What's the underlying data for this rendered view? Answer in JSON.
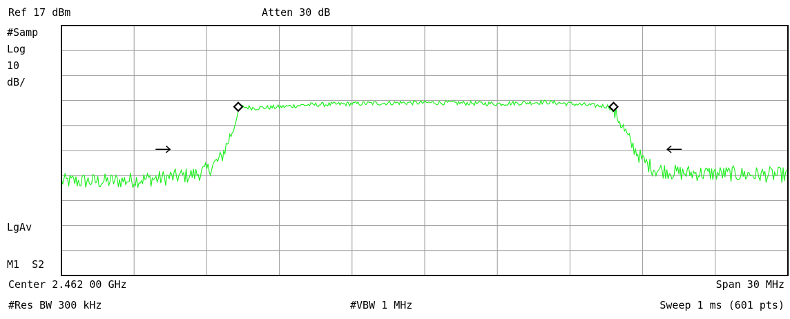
{
  "header": {
    "ref_level": "Ref 17 dBm",
    "attenuation": "Atten 30 dB"
  },
  "left_panel": {
    "detector": "#Samp",
    "scale_type": "Log",
    "scale_value": "10",
    "scale_unit": "dB/",
    "averaging": "LgAv",
    "marker_mode": "M1  S2"
  },
  "footer": {
    "center": "Center 2.462 00 GHz",
    "span": "Span 30 MHz",
    "rbw": "#Res BW 300 kHz",
    "vbw": "#VBW 1 MHz",
    "sweep": "Sweep 1 ms (601 pts)"
  },
  "colors": {
    "trace": "#22ee22",
    "grid": "#9a9a9a",
    "frame": "#000000",
    "marker": "#000000"
  },
  "chart_data": {
    "type": "line",
    "x_center_GHz": 2.462,
    "x_span_MHz": 30,
    "x_range_MHz": [
      -15,
      15
    ],
    "y_range_dBm": [
      -83,
      17
    ],
    "y_scale": "log",
    "y_per_div_dB": 10,
    "grid": true,
    "x_divisions": 10,
    "y_divisions": 10,
    "points": 601,
    "series": [
      {
        "shape": [
          [
            -15.0,
            -45.3
          ],
          [
            -13.0,
            -45.3
          ],
          [
            -11.0,
            -44.2
          ],
          [
            -9.5,
            -42.6
          ],
          [
            -9.0,
            -41.0
          ],
          [
            -8.4,
            -36.0
          ],
          [
            -8.0,
            -26.5
          ],
          [
            -7.6,
            -15.5
          ],
          [
            -7.0,
            -16.0
          ],
          [
            -6.0,
            -15.6
          ],
          [
            -5.0,
            -14.8
          ],
          [
            -3.0,
            -14.3
          ],
          [
            -1.0,
            -13.9
          ],
          [
            0.0,
            -13.9
          ],
          [
            1.0,
            -13.9
          ],
          [
            3.0,
            -14.3
          ],
          [
            5.0,
            -13.6
          ],
          [
            6.0,
            -14.3
          ],
          [
            7.0,
            -15.0
          ],
          [
            7.6,
            -15.3
          ],
          [
            8.0,
            -20.0
          ],
          [
            8.5,
            -30.0
          ],
          [
            9.0,
            -37.0
          ],
          [
            9.5,
            -40.5
          ],
          [
            10.5,
            -42.0
          ],
          [
            12.0,
            -42.2
          ],
          [
            13.5,
            -42.6
          ],
          [
            15.0,
            -42.8
          ]
        ]
      }
    ],
    "markers": [
      {
        "type": "diamond",
        "x_MHz": -7.7,
        "y_dBm": -15.5
      },
      {
        "type": "diamond",
        "x_MHz": 7.8,
        "y_dBm": -15.5
      },
      {
        "type": "arrow-right",
        "x_MHz": -10.8,
        "y_dBm": -32.5
      },
      {
        "type": "arrow-left",
        "x_MHz": 10.3,
        "y_dBm": -32.5
      }
    ]
  }
}
